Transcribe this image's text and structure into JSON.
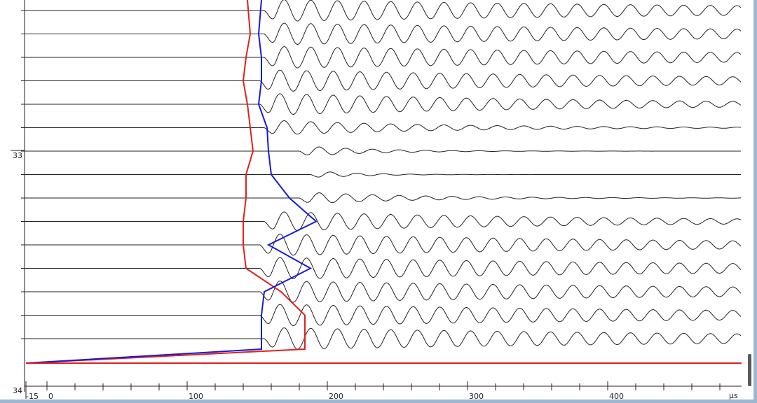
{
  "chart_data": {
    "type": "line",
    "title": "",
    "x_unit": "μs",
    "xlim": [
      -15,
      495
    ],
    "x_ticks": [
      -15,
      0,
      100,
      200,
      300,
      400
    ],
    "x_tick_labels": [
      "-15",
      "0",
      "100",
      "200",
      "300",
      "400"
    ],
    "y_labels": [
      "33",
      "34"
    ],
    "trace_count": 15,
    "wave_period_us": 19,
    "wave_onset_us": [
      155,
      155,
      155,
      152,
      152,
      155,
      180,
      188,
      180,
      155,
      152,
      152,
      152,
      152,
      155
    ],
    "wave_amplitude": [
      1,
      1,
      1,
      1,
      1,
      0.7,
      0.5,
      0.35,
      0.55,
      0.9,
      1,
      1,
      1,
      1,
      1
    ],
    "wave_decay": [
      0.0025,
      0.0025,
      0.0025,
      0.003,
      0.004,
      0.008,
      0.02,
      0.03,
      0.012,
      0.004,
      0.003,
      0.0025,
      0.0025,
      0.0025,
      0.0025
    ],
    "series": [
      {
        "name": "",
        "color": "#e02020",
        "x": [
          143,
          145,
          142,
          140,
          143,
          145,
          147,
          142,
          142,
          140,
          140,
          142,
          167,
          184,
          184
        ],
        "note_x_units": "μs"
      },
      {
        "name": "",
        "color": "#1a1ad8",
        "x": [
          153,
          151,
          153,
          153,
          151,
          157,
          158,
          160,
          173,
          192,
          158,
          188,
          155,
          153,
          153
        ]
      }
    ],
    "grid": false,
    "legend": "none"
  }
}
